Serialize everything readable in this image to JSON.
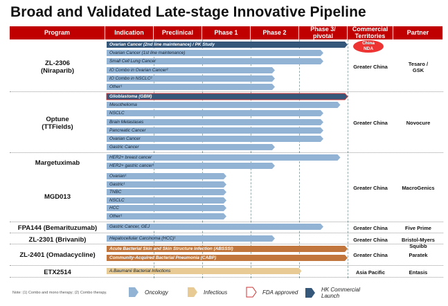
{
  "title": "Broad and Validated Late-stage Innovative Pipeline",
  "columns": [
    "Program",
    "Indication",
    "Preclinical",
    "Phase 1",
    "Phase 2",
    "Phase 3/ pivotal",
    "Commercial Territories",
    "Partner"
  ],
  "colors": {
    "header": "#c00000",
    "oncology": "#92b3d4",
    "infectious": "#e8cb94",
    "infectious_approved": "#c0763c",
    "hk_launch": "#35577a",
    "fda_border": "#d23030",
    "nda_badge": "#e83a3a"
  },
  "programs": [
    {
      "name": "ZL-2306\n(Niraparib)",
      "territory": "Greater China",
      "partner": "Tesaro /\nGSK",
      "badge": "China\nNDA",
      "indications": [
        {
          "label": "Ovarian Cancer (2nd line maintenance) / PK Study",
          "stage": 5.0,
          "type": "hk_launch"
        },
        {
          "label": "Ovarian Cancer (1st line maintenance)",
          "stage": 4.5,
          "type": "oncology"
        },
        {
          "label": "Small Cell Lung Cancer",
          "stage": 4.5,
          "type": "oncology"
        },
        {
          "label": "IO Combo in Ovarian Cancer²",
          "stage": 3.5,
          "type": "oncology"
        },
        {
          "label": "IO Combo in NSCLC²",
          "stage": 3.5,
          "type": "oncology"
        },
        {
          "label": "Other¹",
          "stage": 3.5,
          "type": "oncology"
        }
      ]
    },
    {
      "name": "Optune\n(TTFields)",
      "territory": "Greater China",
      "partner": "Novocure",
      "indications": [
        {
          "label": "Glioblastoma (GBM)",
          "stage": 5.0,
          "type": "hk_launch_fda"
        },
        {
          "label": "Mesothelioma",
          "stage": 4.85,
          "type": "oncology"
        },
        {
          "label": "NSCLC",
          "stage": 4.5,
          "type": "oncology"
        },
        {
          "label": "Brain Metastases",
          "stage": 4.5,
          "type": "oncology"
        },
        {
          "label": "Pancreatic Cancer",
          "stage": 4.5,
          "type": "oncology"
        },
        {
          "label": "Ovarian Cancer",
          "stage": 4.5,
          "type": "oncology"
        },
        {
          "label": "Gastric Cancer",
          "stage": 3.5,
          "type": "oncology"
        }
      ]
    },
    {
      "name": "Margetuximab",
      "territory": "",
      "partner": "",
      "indications": [
        {
          "label": "HER2+ breast cancer",
          "stage": 4.85,
          "type": "oncology"
        },
        {
          "label": "HER2+ gastric cancer¹",
          "stage": 3.5,
          "type": "oncology"
        }
      ]
    },
    {
      "name": "MGD013",
      "territory": "Greater China",
      "partner": "MacroGenics",
      "indications": [
        {
          "label": "Ovarian¹",
          "stage": 2.5,
          "type": "oncology"
        },
        {
          "label": "Gastric¹",
          "stage": 2.5,
          "type": "oncology"
        },
        {
          "label": "TNBC",
          "stage": 2.5,
          "type": "oncology"
        },
        {
          "label": "NSCLC",
          "stage": 2.5,
          "type": "oncology"
        },
        {
          "label": "HCC",
          "stage": 2.5,
          "type": "oncology"
        },
        {
          "label": "Other¹",
          "stage": 2.5,
          "type": "oncology"
        }
      ]
    },
    {
      "name": "FPA144 (Bemarituzumab)",
      "territory": "Greater China",
      "partner": "Five Prime",
      "indications": [
        {
          "label": "Gastric Cancer, GEJ",
          "stage": 4.5,
          "type": "oncology"
        }
      ]
    },
    {
      "name": "ZL-2301 (Brivanib)",
      "territory": "Greater China",
      "partner": "Bristol-Myers Squibb",
      "indications": [
        {
          "label": "Hepatocellular Carcinoma (HCC)¹",
          "stage": 3.5,
          "type": "oncology"
        }
      ]
    },
    {
      "name": "ZL-2401 (Omadacycline)",
      "territory": "Greater China",
      "partner": "Paratek",
      "indications": [
        {
          "label": "Acute Bacterial Skin and Skin Structure Infection (ABSSSI)",
          "stage": 5.0,
          "type": "infectious_approved"
        },
        {
          "label": "Community-Acquired Bacterial Pneumonia (CABP)",
          "stage": 5.0,
          "type": "infectious_approved"
        }
      ]
    },
    {
      "name": "ETX2514",
      "territory": "Asia Pacific",
      "partner": "Entasis",
      "indications": [
        {
          "label": "A.Baumanii Bacterial Infections",
          "stage": 4.05,
          "type": "infectious"
        }
      ]
    }
  ],
  "note": "Note: (1) Combo and mono therapy; (2) Combo therapy.",
  "legend": [
    {
      "label": "Oncology",
      "type": "oncology"
    },
    {
      "label": "Infectious",
      "type": "infectious"
    },
    {
      "label": "FDA approved",
      "type": "fda"
    },
    {
      "label": "HK Commercial\nLaunch",
      "type": "hk_launch"
    }
  ]
}
